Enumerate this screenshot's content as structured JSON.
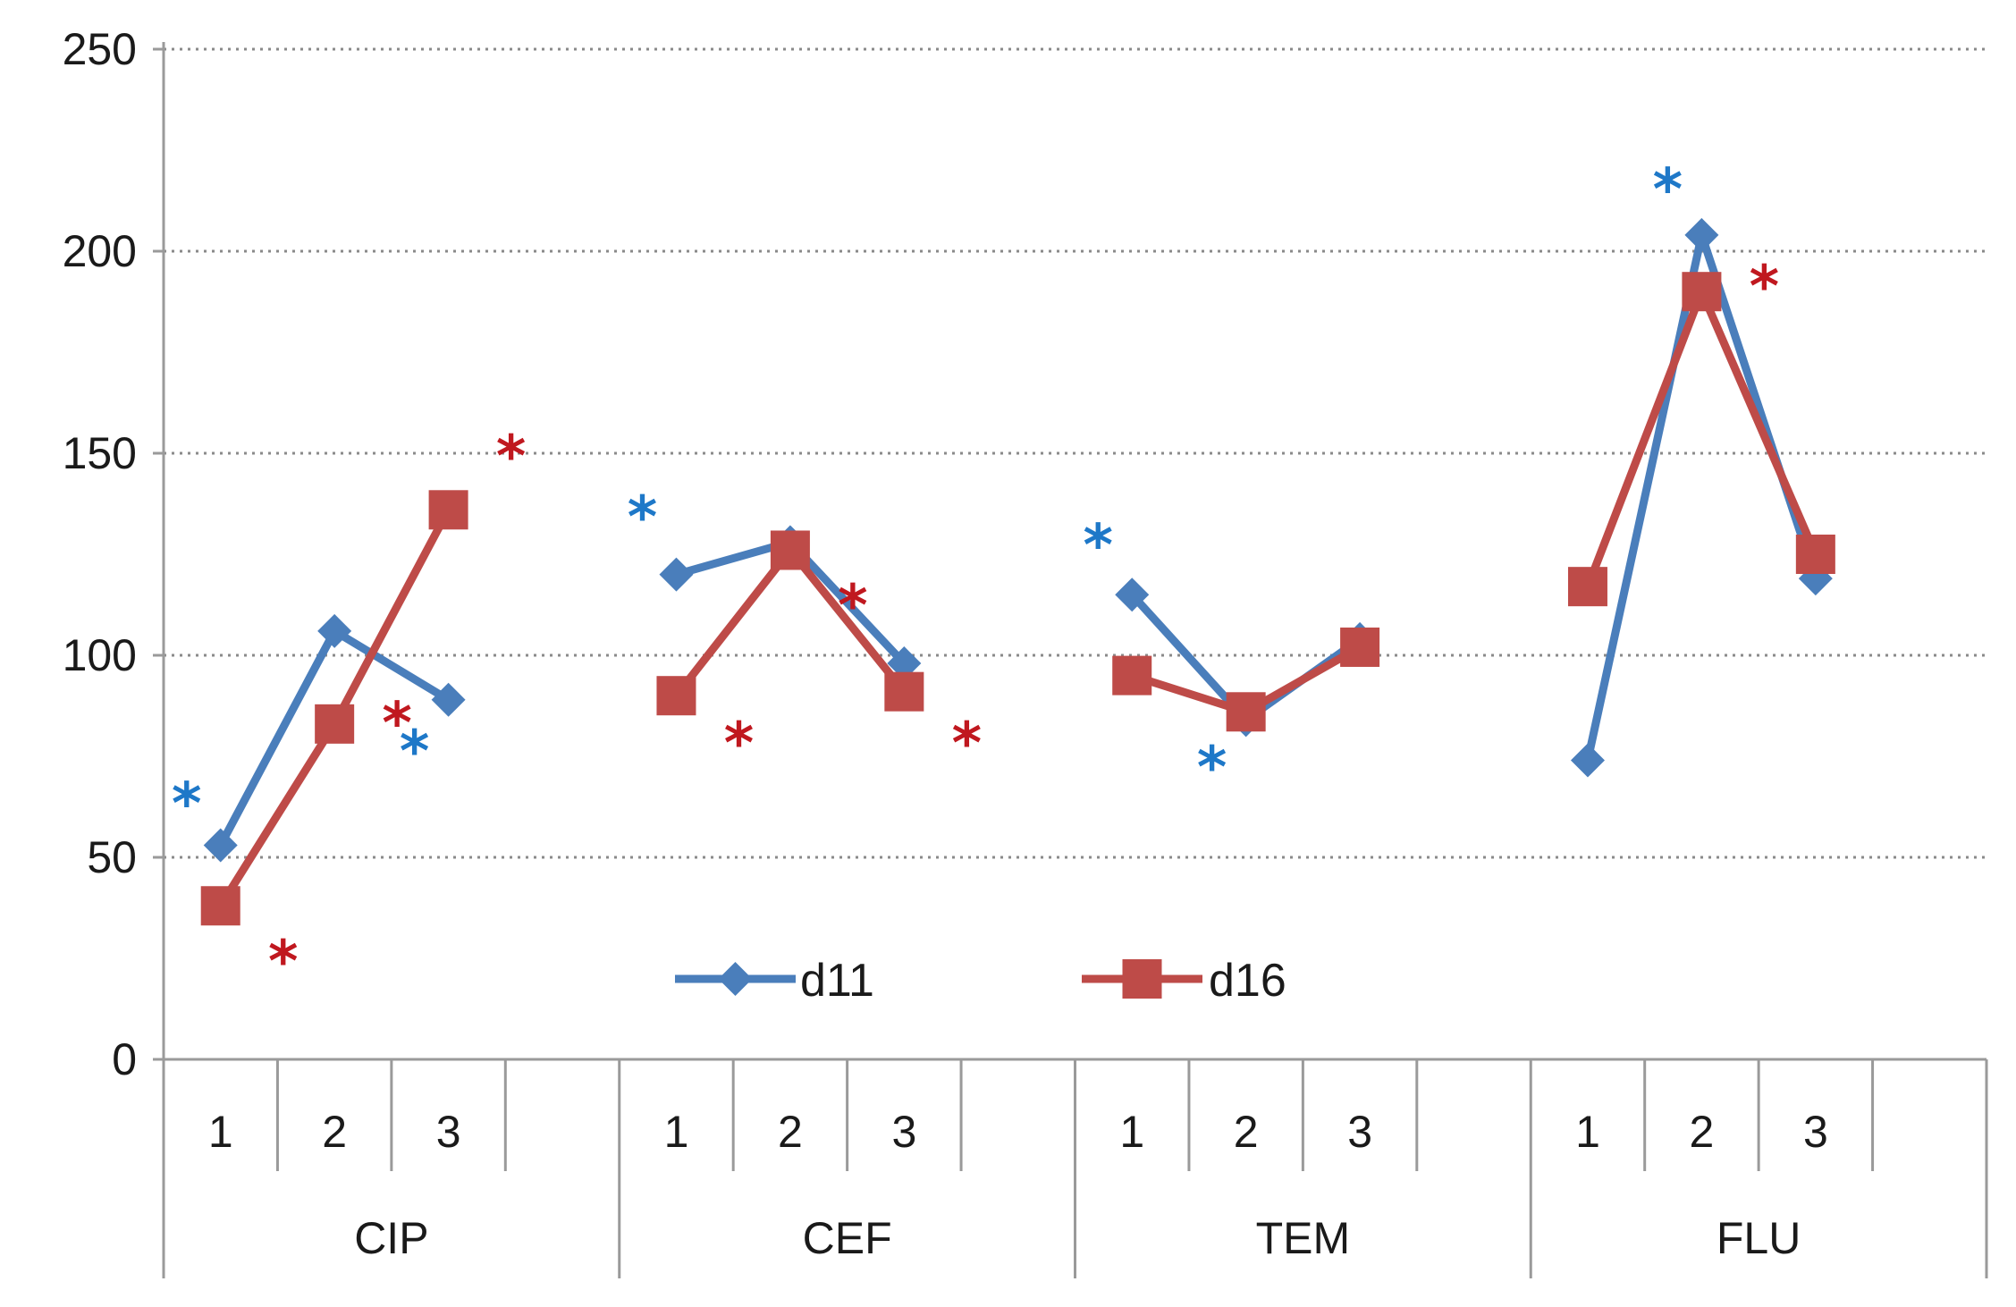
{
  "chart_data": {
    "type": "line",
    "title": "",
    "xlabel": "",
    "ylabel": "",
    "ylim": [
      0,
      250
    ],
    "yticks": [
      0,
      50,
      100,
      150,
      200,
      250
    ],
    "grid": "horizontal-dotted",
    "legend_position": "bottom-center",
    "groups": [
      {
        "name": "CIP",
        "ticks": [
          "1",
          "2",
          "3"
        ]
      },
      {
        "name": "CEF",
        "ticks": [
          "1",
          "2",
          "3"
        ]
      },
      {
        "name": "TEM",
        "ticks": [
          "1",
          "2",
          "3"
        ]
      },
      {
        "name": "FLU",
        "ticks": [
          "1",
          "2",
          "3"
        ]
      }
    ],
    "series": [
      {
        "name": "d11",
        "color": "#4a7ebb",
        "marker": "diamond",
        "values": [
          [
            53,
            106,
            89
          ],
          [
            120,
            128,
            98
          ],
          [
            115,
            84,
            104
          ],
          [
            74,
            204,
            119
          ]
        ]
      },
      {
        "name": "d16",
        "color": "#be4b48",
        "marker": "square",
        "values": [
          [
            38,
            83,
            136
          ],
          [
            90,
            126,
            91
          ],
          [
            95,
            86,
            102
          ],
          [
            117,
            190,
            125
          ]
        ]
      }
    ],
    "annotations": [
      {
        "text": "*",
        "series": "d11",
        "group": "CIP",
        "tick": "1",
        "y": 65
      },
      {
        "text": "*",
        "series": "d16",
        "group": "CIP",
        "tick": "1",
        "y": 26
      },
      {
        "text": "*",
        "series": "d16",
        "group": "CIP",
        "tick": "2",
        "y": 85
      },
      {
        "text": "*",
        "series": "d11",
        "group": "CIP",
        "tick": "3",
        "y": 78
      },
      {
        "text": "*",
        "series": "d16",
        "group": "CIP",
        "tick": "3",
        "y": 151
      },
      {
        "text": "*",
        "series": "d11",
        "group": "CEF",
        "tick": "1",
        "y": 136
      },
      {
        "text": "*",
        "series": "d16",
        "group": "CEF",
        "tick": "1",
        "y": 80
      },
      {
        "text": "*",
        "series": "d16",
        "group": "CEF",
        "tick": "2",
        "y": 114
      },
      {
        "text": "*",
        "series": "d16",
        "group": "CEF",
        "tick": "3",
        "y": 80
      },
      {
        "text": "*",
        "series": "d11",
        "group": "TEM",
        "tick": "1",
        "y": 129
      },
      {
        "text": "*",
        "series": "d11",
        "group": "TEM",
        "tick": "2",
        "y": 74
      },
      {
        "text": "*",
        "series": "d11",
        "group": "FLU",
        "tick": "2",
        "y": 217
      },
      {
        "text": "*",
        "series": "d16",
        "group": "FLU",
        "tick": "2",
        "y": 193
      }
    ]
  }
}
